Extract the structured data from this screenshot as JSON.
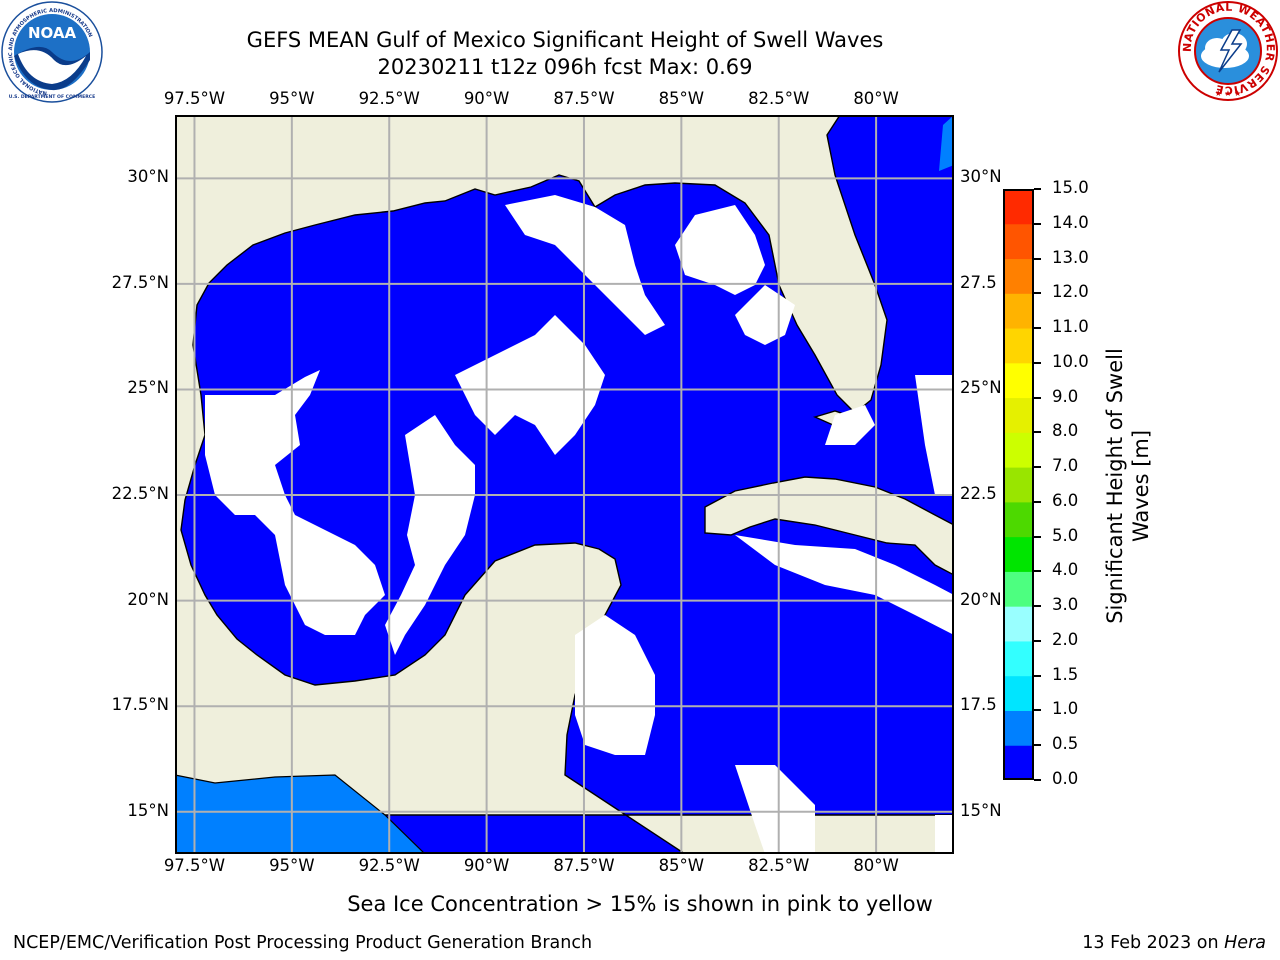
{
  "header": {
    "title_line1": "GEFS MEAN Gulf of Mexico Significant Height of Swell Waves",
    "title_line2": "20230211 t12z 096h fcst   Max: 0.69"
  },
  "logos": {
    "left": {
      "name": "NOAA",
      "ring_text": "NATIONAL OCEANIC AND ATMOSPHERIC ADMINISTRATION",
      "bottom_text": "U.S. DEPARTMENT OF COMMERCE"
    },
    "right": {
      "name": "NATIONAL WEATHER SERVICE"
    }
  },
  "map": {
    "lon_ticks": [
      "97.5°W",
      "95°W",
      "92.5°W",
      "90°W",
      "87.5°W",
      "85°W",
      "82.5°W",
      "80°W"
    ],
    "lat_ticks": [
      "30°N",
      "27.5°N",
      "25°N",
      "22.5°N",
      "20°N",
      "17.5°N",
      "15°N"
    ],
    "lat_ticks_right": [
      "30°N",
      "27.5",
      "25°N",
      "22.5",
      "20°N",
      "17.5",
      "15°N"
    ],
    "lon_range": [
      -98,
      -78
    ],
    "lat_range": [
      14,
      31.5
    ],
    "colors": {
      "land": "#efefdc",
      "ocean_low": "#0000ff",
      "ocean_mid": "#0080ff",
      "grid": "#b0b0b0",
      "coast": "#000000"
    }
  },
  "colorbar": {
    "label_line1": "Significant Height of Swell",
    "label_line2": "Waves [m]",
    "ticks": [
      "0.0",
      "0.5",
      "1.0",
      "1.5",
      "2.0",
      "3.0",
      "4.0",
      "5.0",
      "6.0",
      "7.0",
      "8.0",
      "9.0",
      "10.0",
      "11.0",
      "12.0",
      "13.0",
      "14.0",
      "15.0"
    ],
    "colors": [
      "#0000ff",
      "#0080ff",
      "#00e5ff",
      "#33ffff",
      "#99ffff",
      "#4dff80",
      "#00e500",
      "#4dd900",
      "#99e500",
      "#ccff00",
      "#e5f000",
      "#ffff00",
      "#ffd500",
      "#ffb300",
      "#ff8000",
      "#ff5500",
      "#ff2a00",
      "#ff0000"
    ]
  },
  "notice": "Sea Ice Concentration > 15% is shown in pink to yellow",
  "footer": {
    "left": "NCEP/EMC/Verification Post Processing Product Generation Branch",
    "right_date": "13 Feb 2023 on ",
    "right_host": "Hera"
  }
}
